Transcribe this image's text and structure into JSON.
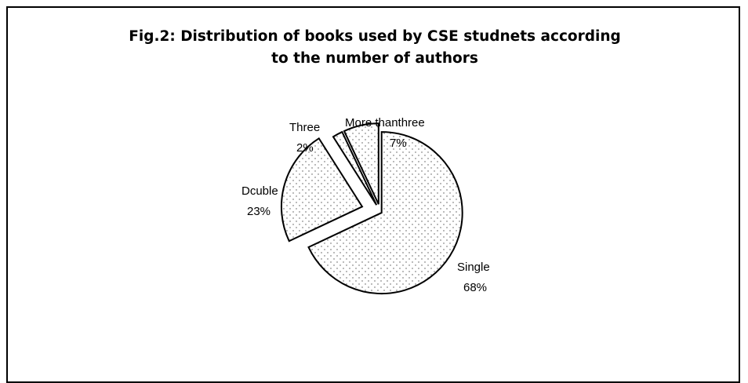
{
  "chart_data": {
    "type": "pie",
    "title_lines": [
      "Fig.2: Distribution of books used by CSE studnets according",
      "to the number of authors"
    ],
    "categories": [
      "Single",
      "Dcuble",
      "Three",
      "More thanthree"
    ],
    "values": [
      68,
      23,
      2,
      7
    ],
    "value_labels": [
      "68%",
      "23%",
      "2%",
      "7%"
    ],
    "exploded": true,
    "fill_pattern": "dotted",
    "legend": "none"
  }
}
